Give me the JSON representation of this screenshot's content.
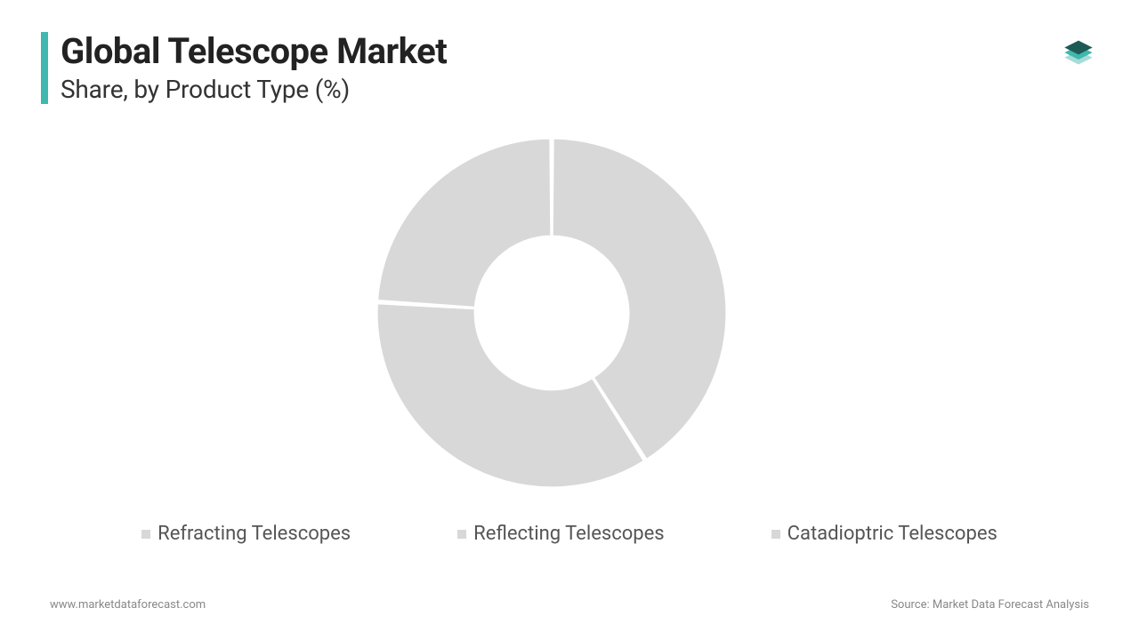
{
  "header": {
    "title": "Global Telescope Market",
    "subtitle": "Share, by Product Type (%)",
    "accent_color": "#3fb8af"
  },
  "logo": {
    "top_color": "#1e5a55",
    "mid_color": "#3fb8af",
    "bot_color": "#a6dcd8"
  },
  "chart": {
    "type": "donut",
    "slice_color": "#d8d8d8",
    "gap_color": "#ffffff",
    "gap_deg": 1.0,
    "inner_radius_pct": 44,
    "outer_radius_pct": 100,
    "background_color": "#ffffff",
    "slices": [
      {
        "label": "Refracting Telescopes",
        "value": 41
      },
      {
        "label": "Reflecting Telescopes",
        "value": 35
      },
      {
        "label": "Catadioptric Telescopes",
        "value": 24
      }
    ]
  },
  "legend": {
    "text_color": "#555555",
    "font_size_pt": 16
  },
  "footer": {
    "left": "www.marketdataforecast.com",
    "right": "Source: Market Data Forecast Analysis",
    "text_color": "#888888"
  }
}
